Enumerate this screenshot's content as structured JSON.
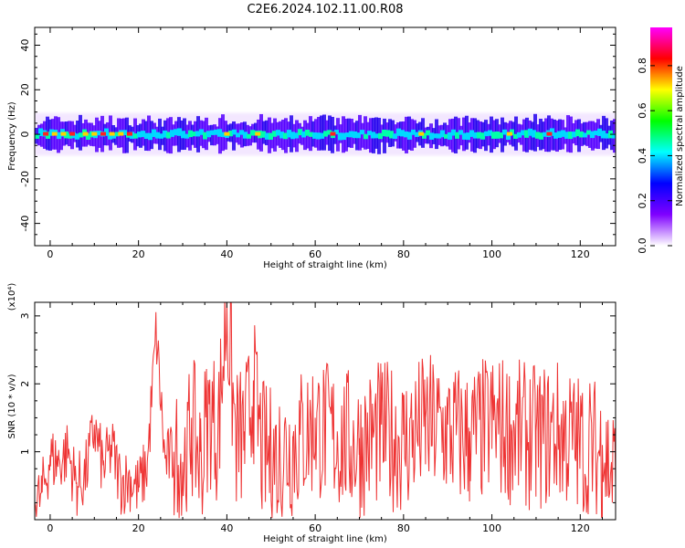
{
  "figure": {
    "title": "C2E6.2024.102.11.00.R08"
  },
  "chart_data": [
    {
      "type": "heatmap",
      "xlabel": "Height of straight line (km)",
      "ylabel": "Frequency (Hz)",
      "xlim": [
        -3.5,
        128
      ],
      "ylim": [
        -50,
        48
      ],
      "xticks": [
        0,
        20,
        40,
        60,
        80,
        100,
        120
      ],
      "yticks": [
        -40,
        -20,
        0,
        20,
        40
      ],
      "colorbar": {
        "label": "Normalized spectral amplitude",
        "range": [
          0.0,
          0.97
        ],
        "ticks": [
          0.0,
          0.2,
          0.4,
          0.6,
          0.8
        ],
        "colors": [
          "#ffffff",
          "#7f00ff",
          "#0000ff",
          "#00ffff",
          "#00ff00",
          "#ffff00",
          "#ff0000",
          "#ff00ff"
        ]
      },
      "band": {
        "center_hz": 0,
        "core_halfwidth_hz": 2.5,
        "outer_halfwidth_hz": 6
      },
      "grid": false
    },
    {
      "type": "line",
      "xlabel": "Height of straight line (km)",
      "ylabel": "SNR (10 * v/v)",
      "y_multiplier": "(x10⁴)",
      "xlim": [
        -3.5,
        128
      ],
      "ylim": [
        0,
        3.2
      ],
      "xticks": [
        0,
        20,
        40,
        60,
        80,
        100,
        120
      ],
      "yticks": [
        1,
        2,
        3
      ],
      "series": [
        {
          "color": "#ee3333",
          "x": [
            -3.5,
            -2,
            0,
            2,
            4,
            6,
            8,
            10,
            12,
            14,
            16,
            18,
            20,
            22,
            24,
            26,
            28,
            30,
            32,
            34,
            36,
            38,
            40,
            42,
            44,
            46,
            48,
            50,
            55,
            60,
            65,
            70,
            75,
            80,
            85,
            90,
            95,
            100,
            105,
            110,
            115,
            120,
            125,
            128
          ],
          "y": [
            0.25,
            0.4,
            0.95,
            0.9,
            1.05,
            0.55,
            0.7,
            1.4,
            0.8,
            1.1,
            0.6,
            0.65,
            0.5,
            0.85,
            2.8,
            0.9,
            1.0,
            0.85,
            1.5,
            1.0,
            1.7,
            1.4,
            3.2,
            1.3,
            1.3,
            2.05,
            1.1,
            1.0,
            1.2,
            1.5,
            1.3,
            1.2,
            1.4,
            1.25,
            1.5,
            1.4,
            1.3,
            1.5,
            1.4,
            1.3,
            1.4,
            1.2,
            1.1,
            0.75
          ]
        }
      ],
      "grid": false
    }
  ]
}
